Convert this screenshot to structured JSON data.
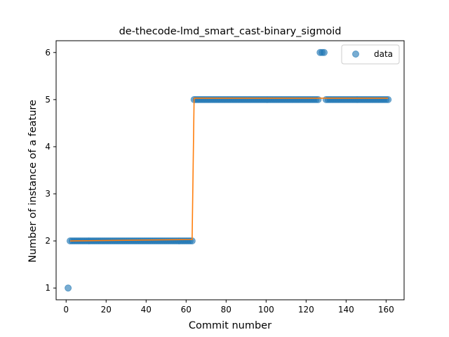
{
  "chart_data": {
    "type": "scatter",
    "title": "de-thecode-lmd_smart_cast-binary_sigmoid",
    "xlabel": "Commit number",
    "ylabel": "Number of instance of a feature",
    "xlim": [
      -5,
      169
    ],
    "ylim": [
      0.75,
      6.25
    ],
    "xticks": [
      0,
      20,
      40,
      60,
      80,
      100,
      120,
      140,
      160
    ],
    "yticks": [
      1,
      2,
      3,
      4,
      5,
      6
    ],
    "legend": {
      "position": "top-right",
      "entries": [
        "data"
      ]
    },
    "grid": false,
    "colors": {
      "data": "#1f77b4",
      "fit": "#ff7f0e"
    },
    "series": [
      {
        "name": "data",
        "kind": "scatter",
        "segments": [
          {
            "x_from": 1,
            "x_to": 1,
            "y": 1
          },
          {
            "x_from": 2,
            "x_to": 63,
            "y": 2
          },
          {
            "x_from": 64,
            "x_to": 126,
            "y": 5
          },
          {
            "x_from": 127,
            "x_to": 129,
            "y": 6
          },
          {
            "x_from": 130,
            "x_to": 161,
            "y": 5
          }
        ]
      },
      {
        "kind": "line",
        "x": [
          2,
          63,
          64,
          161
        ],
        "y": [
          2.0,
          2.03,
          5.03,
          5.03
        ]
      }
    ]
  }
}
